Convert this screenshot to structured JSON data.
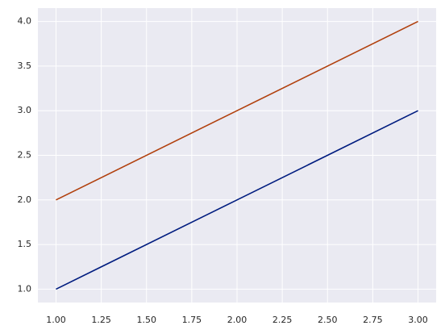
{
  "chart_data": {
    "type": "line",
    "x": [
      1,
      2,
      3
    ],
    "series": [
      {
        "color": "#001c7f",
        "values": [
          1,
          2,
          3
        ]
      },
      {
        "color": "#b1400d",
        "values": [
          2,
          3,
          4
        ]
      }
    ],
    "xlim": [
      0.9,
      3.1
    ],
    "ylim": [
      0.85,
      4.15
    ],
    "xticks": [
      {
        "value": 1,
        "label": "1.00"
      },
      1.25,
      {
        "value": 1.5,
        "label": "1.50"
      },
      1.75,
      {
        "value": 2,
        "label": "2.00"
      },
      2.25,
      {
        "value": 2.5,
        "label": "2.50"
      },
      2.75,
      {
        "value": 3,
        "label": "3.00"
      }
    ],
    "yticks": [
      {
        "value": 1,
        "label": "1.0"
      },
      1.5,
      {
        "value": 2,
        "label": "2.0"
      },
      2.5,
      {
        "value": 3,
        "label": "3.0"
      },
      3.5,
      {
        "value": 4,
        "label": "4.0"
      }
    ],
    "grid": true
  }
}
